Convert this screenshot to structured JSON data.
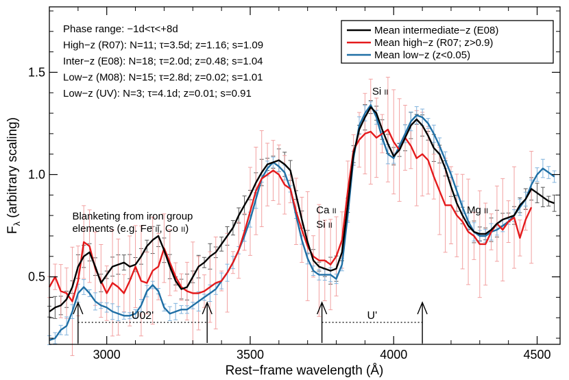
{
  "chart_data": {
    "type": "line",
    "xlabel": "Rest−frame wavelength (Å)",
    "ylabel": "Fλ (arbitrary scaling)",
    "xlim": [
      2800,
      4580
    ],
    "ylim": [
      0.17,
      1.82
    ],
    "xticks": [
      3000,
      3500,
      4000,
      4500
    ],
    "xticks_minor": [
      2800,
      2900,
      3100,
      3200,
      3300,
      3400,
      3600,
      3700,
      3800,
      3900,
      4100,
      4200,
      4300,
      4400
    ],
    "yticks": [
      0.5,
      1.0,
      1.5
    ],
    "yticks_minor": [
      0.2,
      0.3,
      0.4,
      0.6,
      0.7,
      0.8,
      0.9,
      1.1,
      1.2,
      1.3,
      1.4,
      1.6,
      1.7,
      1.8
    ],
    "grid": false,
    "legend_position": "top-right",
    "info_lines": [
      "Phase range: −1d<τ<+8d",
      "High−z (R07): N=11; τ=3.5d; z=1.16; s=1.09",
      "Inter−z (E08): N=18; τ=2.0d; z=0.48; s=1.04",
      "Low−z (M08): N=15; τ=2.8d; z=0.02; s=1.01",
      "Low−z (UV): N=3; τ=4.1d; z=0.01; s=0.91"
    ],
    "series": [
      {
        "name": "Mean intermediate−z (E08)",
        "color": "#000000",
        "error_color": "#555555",
        "points": [
          [
            2800,
            0.33
          ],
          [
            2820,
            0.35
          ],
          [
            2840,
            0.36
          ],
          [
            2860,
            0.39
          ],
          [
            2880,
            0.45
          ],
          [
            2900,
            0.55
          ],
          [
            2920,
            0.6
          ],
          [
            2940,
            0.62
          ],
          [
            2960,
            0.55
          ],
          [
            2980,
            0.47
          ],
          [
            3000,
            0.51
          ],
          [
            3020,
            0.55
          ],
          [
            3040,
            0.56
          ],
          [
            3060,
            0.57
          ],
          [
            3080,
            0.55
          ],
          [
            3100,
            0.56
          ],
          [
            3120,
            0.6
          ],
          [
            3140,
            0.65
          ],
          [
            3160,
            0.68
          ],
          [
            3180,
            0.7
          ],
          [
            3200,
            0.63
          ],
          [
            3220,
            0.55
          ],
          [
            3240,
            0.48
          ],
          [
            3260,
            0.44
          ],
          [
            3280,
            0.45
          ],
          [
            3300,
            0.5
          ],
          [
            3320,
            0.55
          ],
          [
            3340,
            0.57
          ],
          [
            3360,
            0.6
          ],
          [
            3380,
            0.62
          ],
          [
            3400,
            0.66
          ],
          [
            3420,
            0.7
          ],
          [
            3440,
            0.74
          ],
          [
            3460,
            0.8
          ],
          [
            3480,
            0.85
          ],
          [
            3500,
            0.9
          ],
          [
            3520,
            0.96
          ],
          [
            3540,
            1.01
          ],
          [
            3560,
            1.05
          ],
          [
            3580,
            1.06
          ],
          [
            3600,
            1.07
          ],
          [
            3620,
            1.05
          ],
          [
            3640,
            1.02
          ],
          [
            3660,
            0.9
          ],
          [
            3680,
            0.78
          ],
          [
            3700,
            0.67
          ],
          [
            3720,
            0.58
          ],
          [
            3740,
            0.55
          ],
          [
            3760,
            0.54
          ],
          [
            3780,
            0.53
          ],
          [
            3800,
            0.54
          ],
          [
            3820,
            0.62
          ],
          [
            3840,
            0.85
          ],
          [
            3860,
            1.1
          ],
          [
            3880,
            1.22
          ],
          [
            3900,
            1.28
          ],
          [
            3920,
            1.33
          ],
          [
            3940,
            1.3
          ],
          [
            3960,
            1.22
          ],
          [
            3980,
            1.15
          ],
          [
            4000,
            1.09
          ],
          [
            4020,
            1.12
          ],
          [
            4040,
            1.18
          ],
          [
            4060,
            1.24
          ],
          [
            4080,
            1.27
          ],
          [
            4100,
            1.24
          ],
          [
            4120,
            1.19
          ],
          [
            4140,
            1.13
          ],
          [
            4160,
            1.1
          ],
          [
            4180,
            1.03
          ],
          [
            4200,
            0.94
          ],
          [
            4220,
            0.86
          ],
          [
            4240,
            0.8
          ],
          [
            4260,
            0.75
          ],
          [
            4280,
            0.72
          ],
          [
            4300,
            0.71
          ],
          [
            4320,
            0.71
          ],
          [
            4340,
            0.73
          ],
          [
            4360,
            0.76
          ],
          [
            4380,
            0.78
          ],
          [
            4400,
            0.79
          ],
          [
            4420,
            0.8
          ],
          [
            4440,
            0.85
          ],
          [
            4460,
            0.88
          ],
          [
            4480,
            0.93
          ],
          [
            4500,
            0.91
          ],
          [
            4520,
            0.89
          ],
          [
            4540,
            0.87
          ],
          [
            4560,
            0.86
          ]
        ]
      },
      {
        "name": "Mean high−z (R07; z>0.9)",
        "color": "#e41a1c",
        "error_color": "#f2a0a0",
        "points": [
          [
            2800,
            0.45
          ],
          [
            2820,
            0.5
          ],
          [
            2840,
            0.43
          ],
          [
            2860,
            0.42
          ],
          [
            2880,
            0.38
          ],
          [
            2900,
            0.48
          ],
          [
            2920,
            0.67
          ],
          [
            2940,
            0.65
          ],
          [
            2960,
            0.54
          ],
          [
            2980,
            0.48
          ],
          [
            3000,
            0.42
          ],
          [
            3020,
            0.47
          ],
          [
            3040,
            0.45
          ],
          [
            3060,
            0.42
          ],
          [
            3080,
            0.48
          ],
          [
            3100,
            0.55
          ],
          [
            3120,
            0.48
          ],
          [
            3140,
            0.47
          ],
          [
            3160,
            0.53
          ],
          [
            3180,
            0.55
          ],
          [
            3200,
            0.64
          ],
          [
            3220,
            0.57
          ],
          [
            3240,
            0.5
          ],
          [
            3260,
            0.45
          ],
          [
            3280,
            0.43
          ],
          [
            3300,
            0.42
          ],
          [
            3320,
            0.42
          ],
          [
            3340,
            0.43
          ],
          [
            3360,
            0.45
          ],
          [
            3380,
            0.47
          ],
          [
            3400,
            0.48
          ],
          [
            3420,
            0.52
          ],
          [
            3440,
            0.57
          ],
          [
            3460,
            0.63
          ],
          [
            3480,
            0.72
          ],
          [
            3500,
            0.82
          ],
          [
            3520,
            0.92
          ],
          [
            3540,
            0.98
          ],
          [
            3560,
            1.0
          ],
          [
            3580,
            1.02
          ],
          [
            3600,
            1.0
          ],
          [
            3620,
            0.95
          ],
          [
            3640,
            0.93
          ],
          [
            3660,
            0.82
          ],
          [
            3680,
            0.73
          ],
          [
            3700,
            0.65
          ],
          [
            3720,
            0.6
          ],
          [
            3740,
            0.58
          ],
          [
            3760,
            0.58
          ],
          [
            3780,
            0.56
          ],
          [
            3800,
            0.6
          ],
          [
            3820,
            0.68
          ],
          [
            3840,
            0.92
          ],
          [
            3860,
            1.12
          ],
          [
            3880,
            1.17
          ],
          [
            3900,
            1.2
          ],
          [
            3920,
            1.21
          ],
          [
            3940,
            1.18
          ],
          [
            3960,
            1.2
          ],
          [
            3980,
            1.22
          ],
          [
            4000,
            1.16
          ],
          [
            4020,
            1.12
          ],
          [
            4040,
            1.18
          ],
          [
            4060,
            1.14
          ],
          [
            4080,
            1.08
          ],
          [
            4100,
            1.1
          ],
          [
            4120,
            1.07
          ],
          [
            4140,
            0.99
          ],
          [
            4160,
            0.92
          ],
          [
            4180,
            0.85
          ],
          [
            4200,
            0.85
          ],
          [
            4220,
            0.8
          ],
          [
            4240,
            0.77
          ],
          [
            4260,
            0.72
          ],
          [
            4280,
            0.7
          ],
          [
            4300,
            0.66
          ],
          [
            4320,
            0.66
          ],
          [
            4340,
            0.72
          ],
          [
            4360,
            0.76
          ],
          [
            4380,
            0.73
          ],
          [
            4400,
            0.77
          ],
          [
            4420,
            0.79
          ],
          [
            4440,
            0.69
          ],
          [
            4460,
            0.78
          ],
          [
            4480,
            0.84
          ]
        ]
      },
      {
        "name": "Mean low−z (z<0.05)",
        "color": "#1f6fa5",
        "error_color": "#7fb2dc",
        "points": [
          [
            2800,
            0.19
          ],
          [
            2820,
            0.2
          ],
          [
            2840,
            0.24
          ],
          [
            2860,
            0.26
          ],
          [
            2880,
            0.33
          ],
          [
            2900,
            0.42
          ],
          [
            2920,
            0.45
          ],
          [
            2940,
            0.42
          ],
          [
            2960,
            0.38
          ],
          [
            2980,
            0.36
          ],
          [
            3000,
            0.35
          ],
          [
            3020,
            0.33
          ],
          [
            3040,
            0.32
          ],
          [
            3060,
            0.31
          ],
          [
            3080,
            0.31
          ],
          [
            3100,
            0.32
          ],
          [
            3120,
            0.36
          ],
          [
            3140,
            0.43
          ],
          [
            3160,
            0.46
          ],
          [
            3180,
            0.43
          ],
          [
            3200,
            0.35
          ],
          [
            3220,
            0.32
          ],
          [
            3240,
            0.33
          ],
          [
            3260,
            0.34
          ],
          [
            3280,
            0.34
          ],
          [
            3300,
            0.36
          ],
          [
            3320,
            0.38
          ],
          [
            3340,
            0.4
          ],
          [
            3360,
            0.42
          ],
          [
            3380,
            0.44
          ],
          [
            3400,
            0.48
          ],
          [
            3420,
            0.52
          ],
          [
            3440,
            0.57
          ],
          [
            3460,
            0.63
          ],
          [
            3480,
            0.7
          ],
          [
            3500,
            0.78
          ],
          [
            3520,
            0.88
          ],
          [
            3540,
            0.98
          ],
          [
            3560,
            1.03
          ],
          [
            3580,
            1.06
          ],
          [
            3600,
            1.04
          ],
          [
            3620,
            1.01
          ],
          [
            3640,
            0.93
          ],
          [
            3660,
            0.8
          ],
          [
            3680,
            0.68
          ],
          [
            3700,
            0.59
          ],
          [
            3720,
            0.53
          ],
          [
            3740,
            0.51
          ],
          [
            3760,
            0.51
          ],
          [
            3780,
            0.51
          ],
          [
            3800,
            0.49
          ],
          [
            3820,
            0.56
          ],
          [
            3840,
            0.8
          ],
          [
            3860,
            1.08
          ],
          [
            3880,
            1.24
          ],
          [
            3900,
            1.3
          ],
          [
            3920,
            1.34
          ],
          [
            3940,
            1.28
          ],
          [
            3960,
            1.18
          ],
          [
            3980,
            1.1
          ],
          [
            4000,
            1.08
          ],
          [
            4020,
            1.14
          ],
          [
            4040,
            1.2
          ],
          [
            4060,
            1.26
          ],
          [
            4080,
            1.29
          ],
          [
            4100,
            1.28
          ],
          [
            4120,
            1.25
          ],
          [
            4140,
            1.2
          ],
          [
            4160,
            1.14
          ],
          [
            4180,
            1.07
          ],
          [
            4200,
            1.0
          ],
          [
            4220,
            0.92
          ],
          [
            4240,
            0.84
          ],
          [
            4260,
            0.77
          ],
          [
            4280,
            0.72
          ],
          [
            4300,
            0.7
          ],
          [
            4320,
            0.7
          ],
          [
            4340,
            0.72
          ],
          [
            4360,
            0.73
          ],
          [
            4380,
            0.75
          ],
          [
            4400,
            0.77
          ],
          [
            4420,
            0.8
          ],
          [
            4440,
            0.84
          ],
          [
            4460,
            0.88
          ],
          [
            4480,
            0.95
          ],
          [
            4500,
            1.0
          ],
          [
            4520,
            1.03
          ],
          [
            4540,
            1.01
          ],
          [
            4560,
            0.99
          ]
        ]
      }
    ],
    "annotations": [
      {
        "text": "Blanketing from iron group",
        "x": 2880,
        "y": 0.78
      },
      {
        "text": "elements (e.g. Fe II, Co II)",
        "x": 2880,
        "y": 0.72
      },
      {
        "text": "Ca II",
        "x": 3730,
        "y": 0.81
      },
      {
        "text": "Si II",
        "x": 3730,
        "y": 0.74
      },
      {
        "text": "Si II",
        "x": 3925,
        "y": 1.39
      },
      {
        "text": "Mg II",
        "x": 4255,
        "y": 0.81
      }
    ],
    "filters": [
      {
        "label": "U02'",
        "start": 2900,
        "end": 3350
      },
      {
        "label": "U'",
        "start": 3750,
        "end": 4100
      }
    ]
  }
}
